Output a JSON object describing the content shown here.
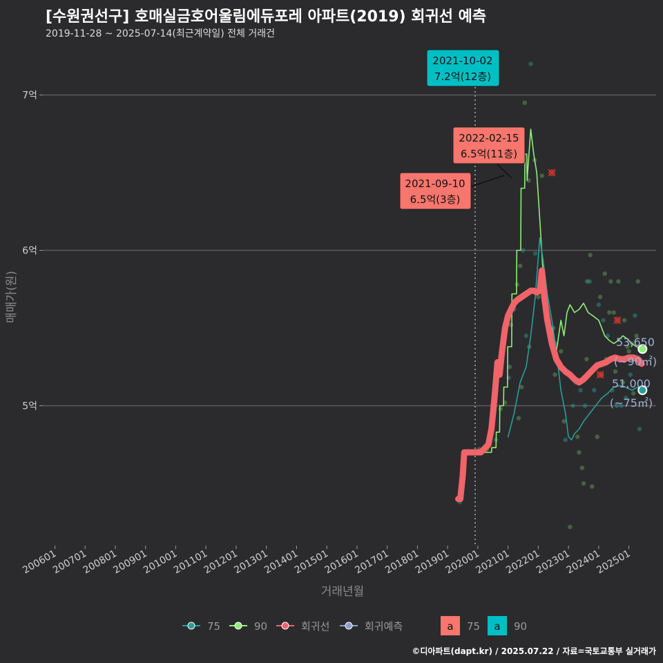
{
  "title": "[수원권선구] 호매실금호어울림에듀포레 아파트(2019) 회귀선 예측",
  "subtitle": "2019-11-28 ~ 2025-07-14(최근계약일) 전체 거래건",
  "credit": "©디아파트(dapt.kr) / 2025.07.22 / 자료=국토교통부 실거래가",
  "colors": {
    "c75": "#2a9d9a",
    "c90": "#90ee7a",
    "regression": "#f0646a",
    "forecast": "#8c9ecf",
    "label_red": "#f8766d",
    "label_cyan": "#00bfc4"
  },
  "chart_data": {
    "type": "line",
    "xlabel": "거래년월",
    "ylabel": "매매가(원)",
    "xlim": [
      2005.6,
      2025.9
    ],
    "ylim": [
      4.1,
      7.3
    ],
    "yticks": [
      {
        "v": 5,
        "label": "5억"
      },
      {
        "v": 6,
        "label": "6억"
      },
      {
        "v": 7,
        "label": "7억"
      }
    ],
    "xticks": [
      "200601",
      "200701",
      "200801",
      "200901",
      "201001",
      "201101",
      "201201",
      "201301",
      "201401",
      "201501",
      "201601",
      "201701",
      "201801",
      "201901",
      "202001",
      "202101",
      "202201",
      "202301",
      "202401",
      "202501"
    ],
    "vline": 2019.91,
    "series": [
      {
        "name": "90",
        "color": "#90ee7a",
        "x": [
          2019.92,
          2020.3,
          2020.45,
          2020.46,
          2020.6,
          2020.61,
          2020.72,
          2020.73,
          2020.85,
          2020.86,
          2020.98,
          2020.99,
          2021.12,
          2021.13,
          2021.28,
          2021.29,
          2021.42,
          2021.43,
          2021.55,
          2021.56,
          2021.62,
          2021.63,
          2021.75,
          2021.85,
          2021.95,
          2022.05,
          2022.15,
          2022.3,
          2022.45,
          2022.6,
          2022.75,
          2022.85,
          2022.95,
          2023.05,
          2023.2,
          2023.35,
          2023.5,
          2023.65,
          2023.8,
          2024.0,
          2024.1,
          2024.2,
          2024.35,
          2024.5,
          2024.65,
          2024.8,
          2024.95,
          2025.1,
          2025.25,
          2025.45
        ],
        "y": [
          4.7,
          4.7,
          4.7,
          4.73,
          4.73,
          4.83,
          4.83,
          5.0,
          5.0,
          5.12,
          5.12,
          5.38,
          5.38,
          5.72,
          5.72,
          6.0,
          6.0,
          6.4,
          6.4,
          6.62,
          6.62,
          6.45,
          6.78,
          6.62,
          6.5,
          6.2,
          5.88,
          5.55,
          5.5,
          5.35,
          5.55,
          5.45,
          5.6,
          5.65,
          5.6,
          5.62,
          5.66,
          5.6,
          5.58,
          5.55,
          5.5,
          5.45,
          5.42,
          5.4,
          5.42,
          5.45,
          5.43,
          5.4,
          5.38,
          5.365
        ]
      },
      {
        "name": "75",
        "color": "#2a9d9a",
        "x": [
          2021.0,
          2021.2,
          2021.4,
          2021.6,
          2021.75,
          2021.9,
          2022.05,
          2022.15,
          2022.3,
          2022.45,
          2022.6,
          2022.75,
          2022.9,
          2023.0,
          2023.1,
          2023.2,
          2023.35,
          2023.5,
          2023.7,
          2023.9,
          2024.1,
          2024.3,
          2024.5,
          2024.7,
          2024.9,
          2025.1,
          2025.3,
          2025.45
        ],
        "y": [
          4.8,
          4.95,
          5.15,
          5.25,
          5.45,
          5.7,
          6.08,
          5.95,
          5.72,
          5.55,
          5.35,
          5.1,
          4.95,
          4.8,
          4.78,
          4.82,
          4.85,
          4.9,
          4.95,
          5.0,
          5.05,
          5.08,
          5.12,
          5.13,
          5.12,
          5.1,
          5.12,
          5.1
        ]
      },
      {
        "name": "회귀선",
        "color": "#f0646a",
        "x": [
          2019.35,
          2019.42,
          2019.5,
          2019.55,
          2019.65,
          2019.8,
          2020.0,
          2020.1,
          2020.2,
          2020.35,
          2020.45,
          2020.55,
          2020.65,
          2020.72,
          2020.8,
          2020.9,
          2021.0,
          2021.1,
          2021.2,
          2021.3,
          2021.45,
          2021.6,
          2021.75,
          2021.85,
          2021.95,
          2022.05,
          2022.12,
          2022.2,
          2022.3,
          2022.45,
          2022.6,
          2022.75,
          2022.9,
          2023.05,
          2023.2,
          2023.35,
          2023.5,
          2023.65,
          2023.8,
          2023.95,
          2024.1,
          2024.25,
          2024.4,
          2024.55,
          2024.7,
          2024.85,
          2025.0,
          2025.15,
          2025.3,
          2025.42
        ],
        "y": [
          4.4,
          4.4,
          4.55,
          4.7,
          4.7,
          4.7,
          4.7,
          4.7,
          4.72,
          4.75,
          4.85,
          5.05,
          5.28,
          5.2,
          5.35,
          5.5,
          5.58,
          5.62,
          5.66,
          5.68,
          5.7,
          5.72,
          5.74,
          5.74,
          5.73,
          5.74,
          5.87,
          5.7,
          5.55,
          5.4,
          5.3,
          5.25,
          5.22,
          5.2,
          5.17,
          5.15,
          5.17,
          5.2,
          5.23,
          5.26,
          5.27,
          5.28,
          5.3,
          5.31,
          5.3,
          5.3,
          5.31,
          5.31,
          5.3,
          5.27
        ]
      }
    ],
    "scatter_points": [
      [
        2019.4,
        4.38
      ],
      [
        2020.05,
        4.72
      ],
      [
        2020.3,
        4.72
      ],
      [
        2020.6,
        4.78
      ],
      [
        2020.75,
        4.98
      ],
      [
        2020.9,
        5.02
      ],
      [
        2021.02,
        5.18
      ],
      [
        2021.05,
        5.25
      ],
      [
        2021.1,
        5.52
      ],
      [
        2021.2,
        5.62
      ],
      [
        2021.3,
        5.78
      ],
      [
        2021.4,
        5.9
      ],
      [
        2021.5,
        6.0
      ],
      [
        2021.55,
        6.95
      ],
      [
        2021.68,
        6.45
      ],
      [
        2021.75,
        7.2
      ],
      [
        2021.88,
        6.58
      ],
      [
        2022.12,
        6.48
      ],
      [
        2021.6,
        5.45
      ],
      [
        2021.7,
        5.38
      ],
      [
        2022.0,
        5.7
      ],
      [
        2022.25,
        5.6
      ],
      [
        2022.35,
        5.55
      ],
      [
        2022.5,
        5.5
      ],
      [
        2022.6,
        5.4
      ],
      [
        2022.75,
        5.35
      ],
      [
        2022.85,
        4.9
      ],
      [
        2022.9,
        4.78
      ],
      [
        2023.0,
        5.2
      ],
      [
        2023.05,
        4.22
      ],
      [
        2023.15,
        5.0
      ],
      [
        2023.25,
        5.15
      ],
      [
        2023.3,
        4.8
      ],
      [
        2023.4,
        5.1
      ],
      [
        2023.45,
        4.6
      ],
      [
        2023.5,
        4.5
      ],
      [
        2023.55,
        5.0
      ],
      [
        2023.6,
        5.3
      ],
      [
        2023.62,
        5.8
      ],
      [
        2023.7,
        5.8
      ],
      [
        2023.72,
        5.97
      ],
      [
        2023.78,
        4.48
      ],
      [
        2023.85,
        5.1
      ],
      [
        2023.9,
        5.25
      ],
      [
        2023.95,
        4.8
      ],
      [
        2024.0,
        5.65
      ],
      [
        2024.05,
        5.7
      ],
      [
        2024.1,
        5.2
      ],
      [
        2024.15,
        5.55
      ],
      [
        2024.2,
        5.85
      ],
      [
        2024.25,
        5.3
      ],
      [
        2024.3,
        5.45
      ],
      [
        2024.35,
        5.6
      ],
      [
        2024.4,
        5.8
      ],
      [
        2024.45,
        5.1
      ],
      [
        2024.5,
        5.6
      ],
      [
        2024.55,
        5.22
      ],
      [
        2024.6,
        5.0
      ],
      [
        2024.65,
        5.8
      ],
      [
        2024.7,
        5.3
      ],
      [
        2024.75,
        5.0
      ],
      [
        2024.8,
        5.15
      ],
      [
        2024.85,
        5.55
      ],
      [
        2024.9,
        5.05
      ],
      [
        2024.95,
        5.38
      ],
      [
        2025.0,
        5.35
      ],
      [
        2025.05,
        5.2
      ],
      [
        2025.1,
        5.4
      ],
      [
        2025.15,
        5.08
      ],
      [
        2025.2,
        5.58
      ],
      [
        2025.25,
        5.45
      ],
      [
        2025.3,
        5.8
      ],
      [
        2025.35,
        4.85
      ],
      [
        2021.35,
        4.92
      ],
      [
        2021.45,
        5.12
      ],
      [
        2021.9,
        5.98
      ],
      [
        2022.55,
        5.2
      ],
      [
        2023.35,
        4.7
      ]
    ],
    "cancel_marks": [
      [
        2022.45,
        6.5
      ],
      [
        2024.05,
        5.2
      ],
      [
        2024.62,
        5.55
      ]
    ],
    "annotations": [
      {
        "line1": "2021-10-02",
        "line2": "7.2억(12층)",
        "style": "cyan"
      },
      {
        "line1": "2022-02-15",
        "line2": "6.5억(11층)",
        "style": "red"
      },
      {
        "line1": "2021-09-10",
        "line2": "6.5억(3층)",
        "style": "red"
      }
    ],
    "end_labels": [
      {
        "value": "53,650",
        "area": "(~90㎡)",
        "y": 5.365
      },
      {
        "value": "51,000",
        "area": "(~75㎡)",
        "y": 5.1
      }
    ],
    "legend": {
      "items": [
        {
          "name": "75",
          "color": "#2a9d9a"
        },
        {
          "name": "90",
          "color": "#90ee7a"
        },
        {
          "name": "회귀선",
          "color": "#f0646a"
        },
        {
          "name": "회귀예측",
          "color": "#8c9ecf"
        }
      ],
      "box_items": [
        {
          "glyph": "a",
          "name": "75",
          "color": "#f8766d"
        },
        {
          "glyph": "a",
          "name": "90",
          "color": "#00bfc4"
        }
      ]
    }
  }
}
